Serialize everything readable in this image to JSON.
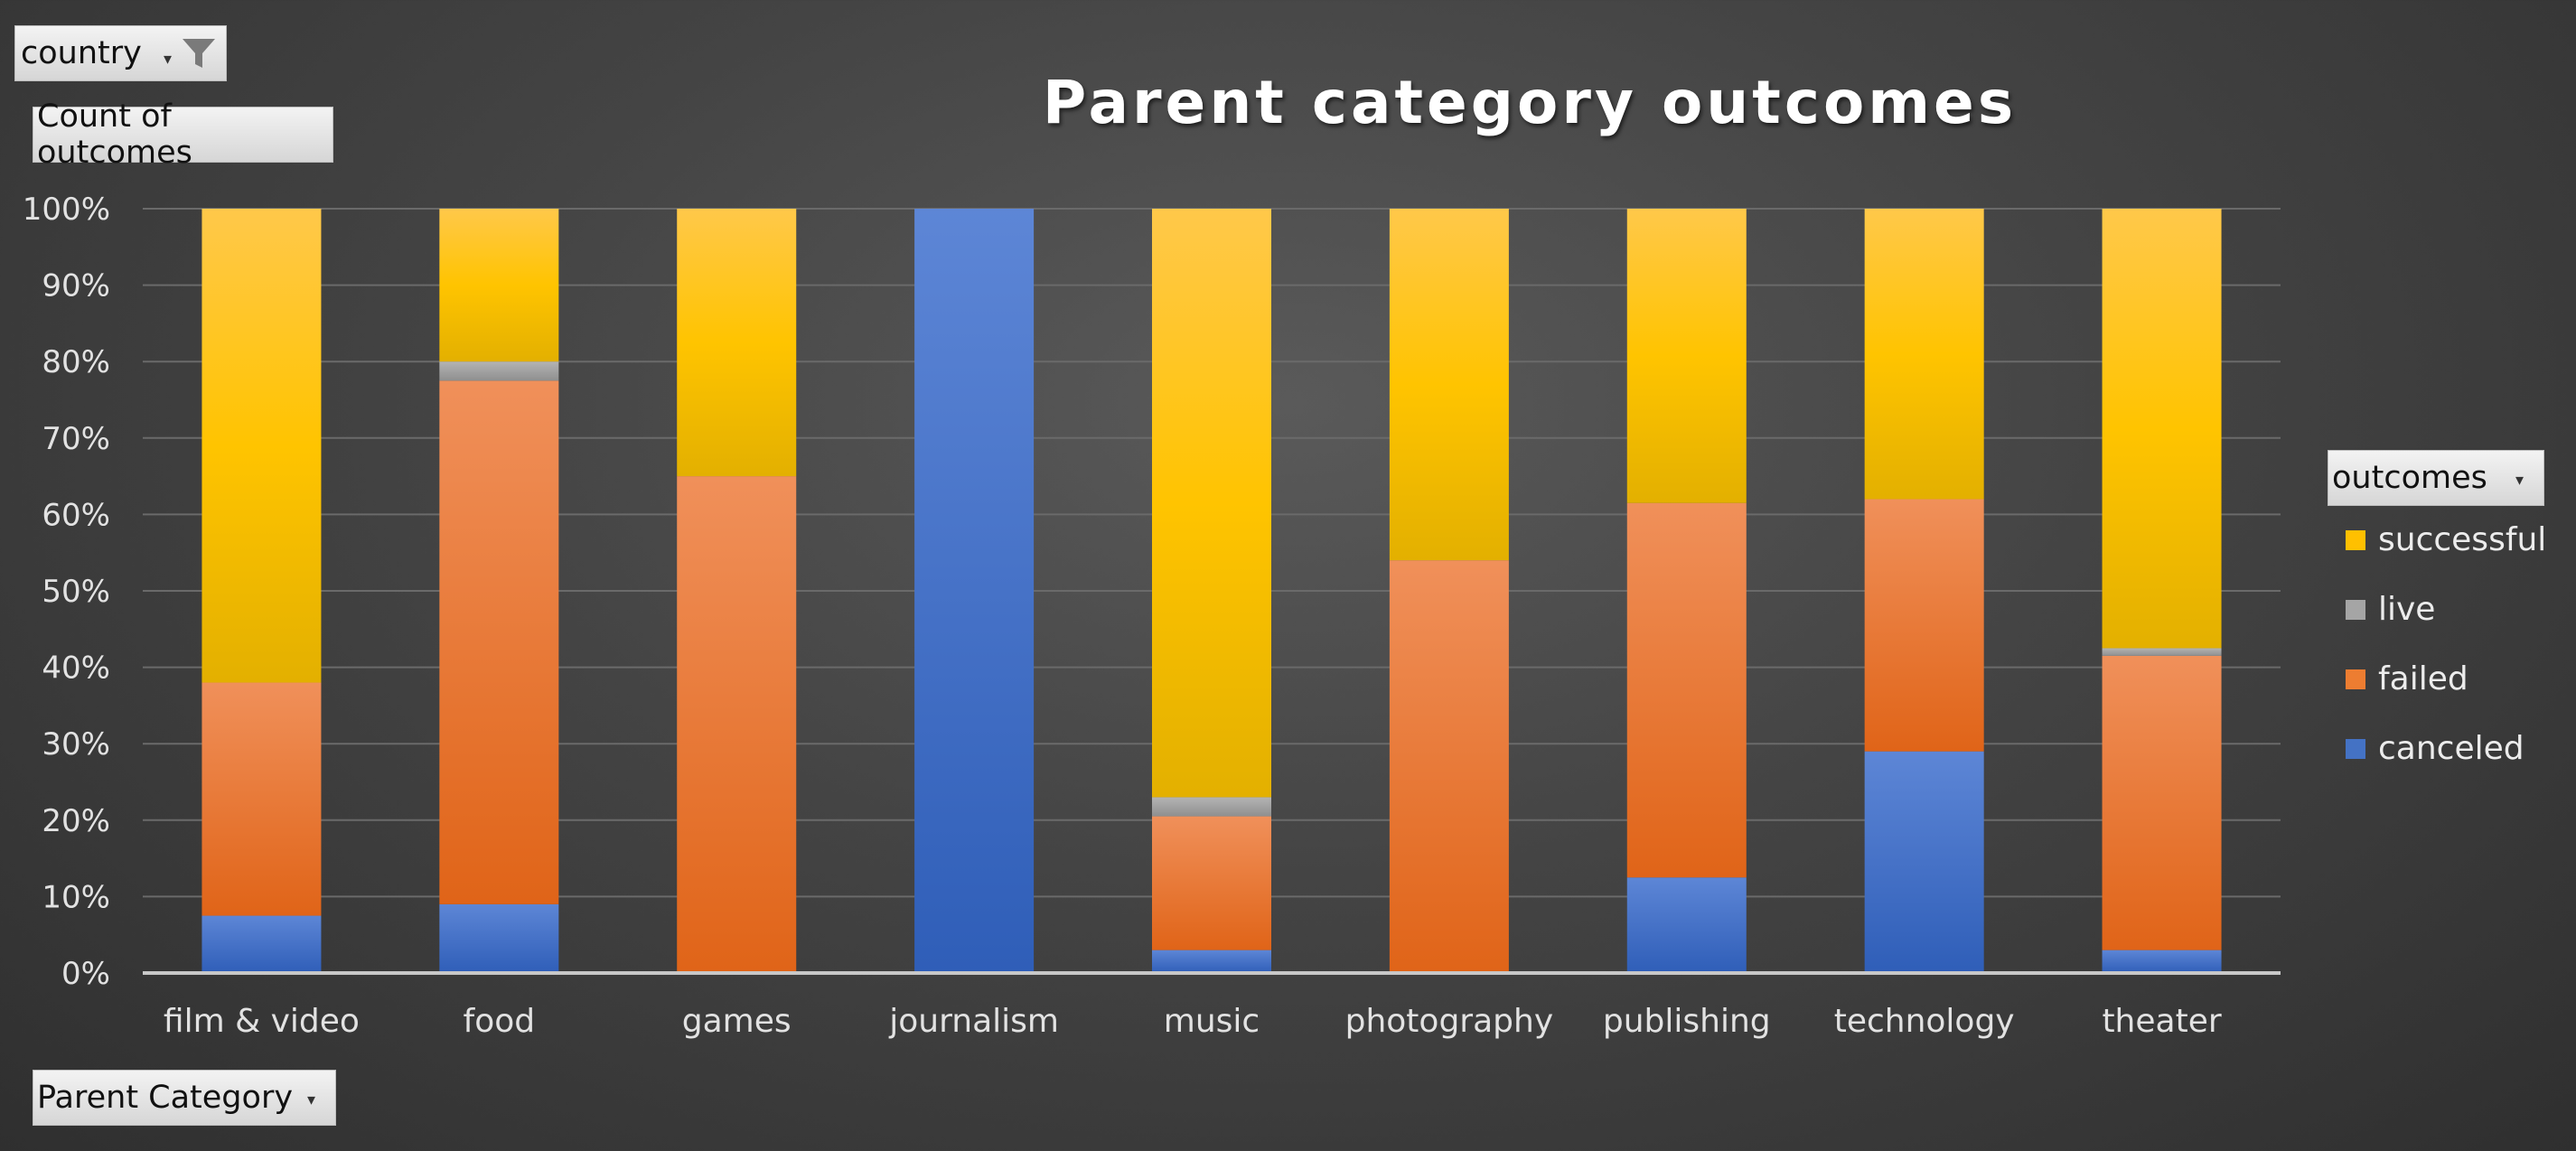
{
  "filters": {
    "country_label": "country",
    "count_label": "Count of outcomes",
    "axis_field_label": "Parent Category",
    "legend_field_label": "outcomes"
  },
  "chart_data": {
    "type": "bar",
    "stacked": true,
    "normalized": true,
    "title": "Parent category outcomes",
    "xlabel": "",
    "ylabel": "",
    "ylim": [
      0,
      100
    ],
    "y_ticks": [
      "0%",
      "10%",
      "20%",
      "30%",
      "40%",
      "50%",
      "60%",
      "70%",
      "80%",
      "90%",
      "100%"
    ],
    "categories": [
      "film & video",
      "food",
      "games",
      "journalism",
      "music",
      "photography",
      "publishing",
      "technology",
      "theater"
    ],
    "series": [
      {
        "name": "canceled",
        "color": "#4472c4",
        "values": [
          7.5,
          9,
          0,
          100,
          3,
          0,
          12.5,
          29,
          3
        ]
      },
      {
        "name": "failed",
        "color": "#ed7d31",
        "values": [
          30.5,
          68.5,
          65,
          0,
          17.5,
          54,
          49,
          33,
          38.5
        ]
      },
      {
        "name": "live",
        "color": "#a5a5a5",
        "values": [
          0,
          2.5,
          0,
          0,
          2.5,
          0,
          0,
          0,
          1
        ]
      },
      {
        "name": "successful",
        "color": "#ffc000",
        "values": [
          62,
          20,
          35,
          0,
          77,
          46,
          38.5,
          38,
          57.5
        ]
      }
    ],
    "legend": {
      "position": "right",
      "order": [
        "successful",
        "live",
        "failed",
        "canceled"
      ]
    },
    "grid": true
  }
}
